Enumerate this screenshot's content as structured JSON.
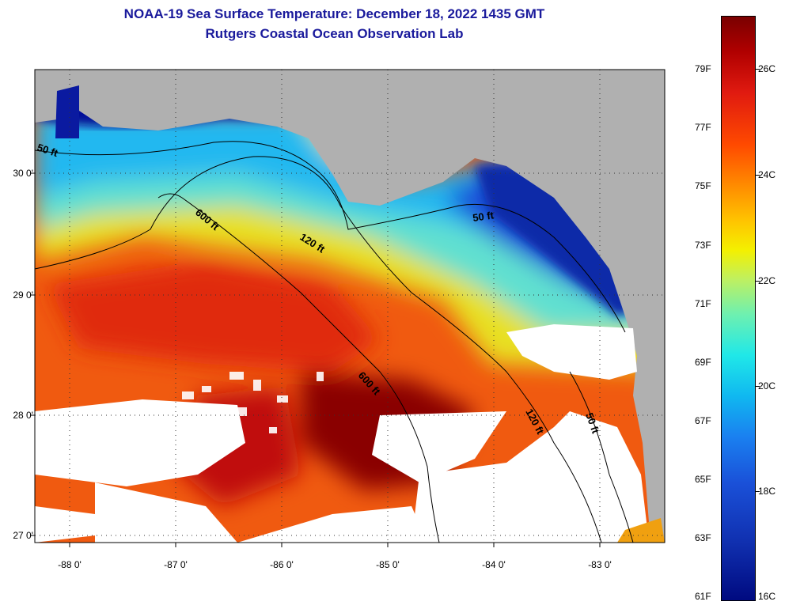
{
  "title": {
    "line1": "NOAA-19 Sea Surface Temperature:  December 18, 2022 1435 GMT",
    "line2": "Rutgers Coastal Ocean Observation Lab"
  },
  "map": {
    "lat_labels": [
      "30 0'",
      "29 0'",
      "28 0'",
      "27 0'"
    ],
    "lon_labels": [
      "-88 0'",
      "-87 0'",
      "-86 0'",
      "-85 0'",
      "-84 0'",
      "-83 0'"
    ],
    "contour_labels": [
      "50 ft",
      "600 ft",
      "120 ft",
      "50 ft",
      "600 ft",
      "120 ft",
      "50 ft"
    ]
  },
  "colorbar": {
    "fahrenheit": [
      "79F",
      "77F",
      "75F",
      "73F",
      "71F",
      "69F",
      "67F",
      "65F",
      "63F",
      "61F"
    ],
    "celsius": [
      "26C",
      "24C",
      "22C",
      "20C",
      "18C",
      "16C"
    ]
  },
  "colors": {
    "title": "#1a1a9c",
    "land": "#b0b0b0",
    "cloud": "#ffffff"
  }
}
